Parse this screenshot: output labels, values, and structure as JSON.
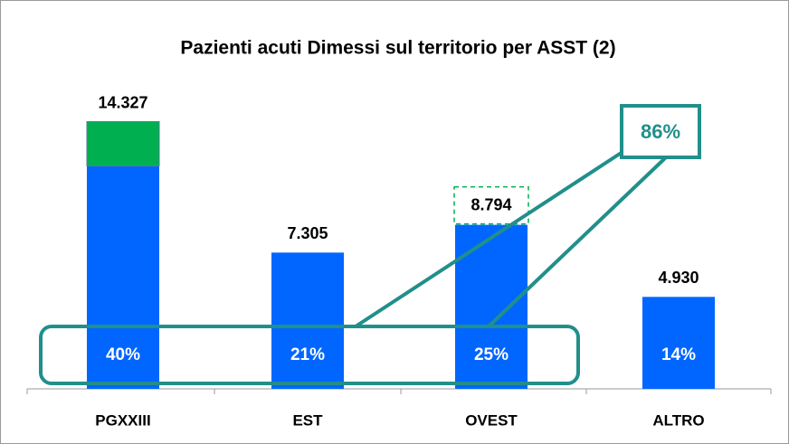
{
  "chart_data": {
    "type": "bar",
    "title": "Pazienti acuti  Dimessi  sul territorio per ASST (2)",
    "categories": [
      "PGXXIII",
      "EST",
      "OVEST",
      "ALTRO"
    ],
    "series": [
      {
        "color": "#0066ff",
        "values": [
          11947,
          7305,
          8794,
          4930
        ]
      },
      {
        "color": "#00b050",
        "values": [
          2380,
          null,
          null,
          null
        ]
      }
    ],
    "totals": [
      14327,
      7305,
      8794,
      4930
    ],
    "total_labels": [
      "14.327",
      "7.305",
      "8.794",
      "4.930"
    ],
    "shares": [
      40,
      21,
      25,
      14
    ],
    "share_labels": [
      "40%",
      "21%",
      "25%",
      "14%"
    ],
    "annotation": "86%",
    "ylim": [
      0,
      16000
    ]
  }
}
